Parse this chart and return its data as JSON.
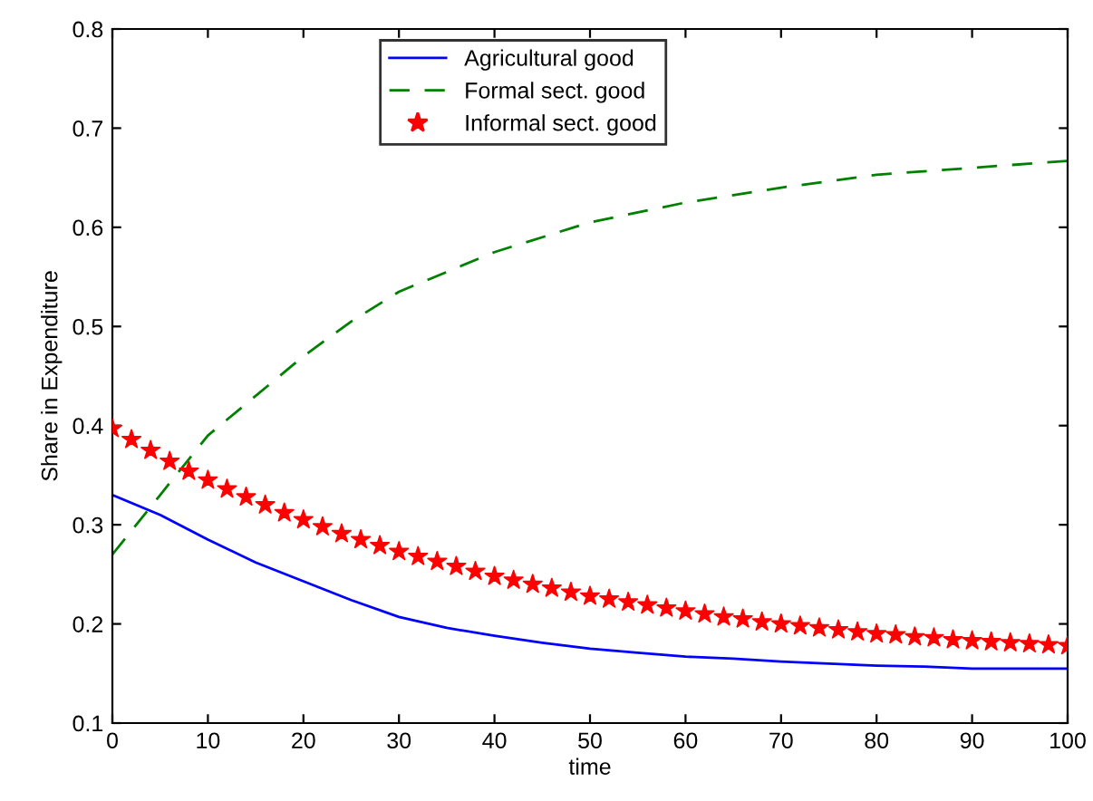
{
  "chart_data": {
    "type": "line",
    "xlabel": "time",
    "ylabel": "Share in Expenditure",
    "xlim": [
      0,
      100
    ],
    "ylim": [
      0.1,
      0.8
    ],
    "xticks": [
      0,
      10,
      20,
      30,
      40,
      50,
      60,
      70,
      80,
      90,
      100
    ],
    "yticks": [
      0.1,
      0.2,
      0.3,
      0.4,
      0.5,
      0.6,
      0.7,
      0.8
    ],
    "grid": false,
    "legend": "top",
    "series": [
      {
        "name": "Agricultural good",
        "color": "#0000ff",
        "line_style": "solid",
        "marker": "none",
        "x": [
          0,
          5,
          10,
          15,
          20,
          25,
          30,
          35,
          40,
          45,
          50,
          55,
          60,
          65,
          70,
          75,
          80,
          85,
          90,
          95,
          100
        ],
        "values": [
          0.33,
          0.31,
          0.285,
          0.262,
          0.243,
          0.224,
          0.207,
          0.196,
          0.188,
          0.181,
          0.175,
          0.171,
          0.167,
          0.165,
          0.162,
          0.16,
          0.158,
          0.157,
          0.155,
          0.155,
          0.155
        ]
      },
      {
        "name": "Formal sect. good",
        "color": "#008000",
        "line_style": "dashed",
        "marker": "none",
        "x": [
          0,
          5,
          10,
          15,
          20,
          25,
          30,
          35,
          40,
          50,
          60,
          70,
          80,
          90,
          100
        ],
        "values": [
          0.27,
          0.33,
          0.39,
          0.43,
          0.47,
          0.505,
          0.535,
          0.555,
          0.575,
          0.605,
          0.625,
          0.64,
          0.653,
          0.66,
          0.667
        ]
      },
      {
        "name": "Informal sect. good",
        "type": "scatter",
        "color": "#ff0000",
        "marker": "star",
        "x": [
          0,
          2,
          4,
          6,
          8,
          10,
          12,
          14,
          16,
          18,
          20,
          22,
          24,
          26,
          28,
          30,
          32,
          34,
          36,
          38,
          40,
          42,
          44,
          46,
          48,
          50,
          52,
          54,
          56,
          58,
          60,
          62,
          64,
          66,
          68,
          70,
          72,
          74,
          76,
          78,
          80,
          82,
          84,
          86,
          88,
          90,
          92,
          94,
          96,
          98,
          100
        ],
        "values": [
          0.397,
          0.386,
          0.375,
          0.364,
          0.354,
          0.345,
          0.336,
          0.328,
          0.32,
          0.312,
          0.305,
          0.298,
          0.291,
          0.285,
          0.279,
          0.273,
          0.268,
          0.263,
          0.258,
          0.253,
          0.248,
          0.244,
          0.24,
          0.236,
          0.232,
          0.228,
          0.225,
          0.222,
          0.219,
          0.216,
          0.213,
          0.21,
          0.207,
          0.205,
          0.202,
          0.2,
          0.198,
          0.196,
          0.194,
          0.192,
          0.19,
          0.189,
          0.187,
          0.186,
          0.184,
          0.183,
          0.182,
          0.181,
          0.18,
          0.179,
          0.178
        ]
      }
    ]
  }
}
